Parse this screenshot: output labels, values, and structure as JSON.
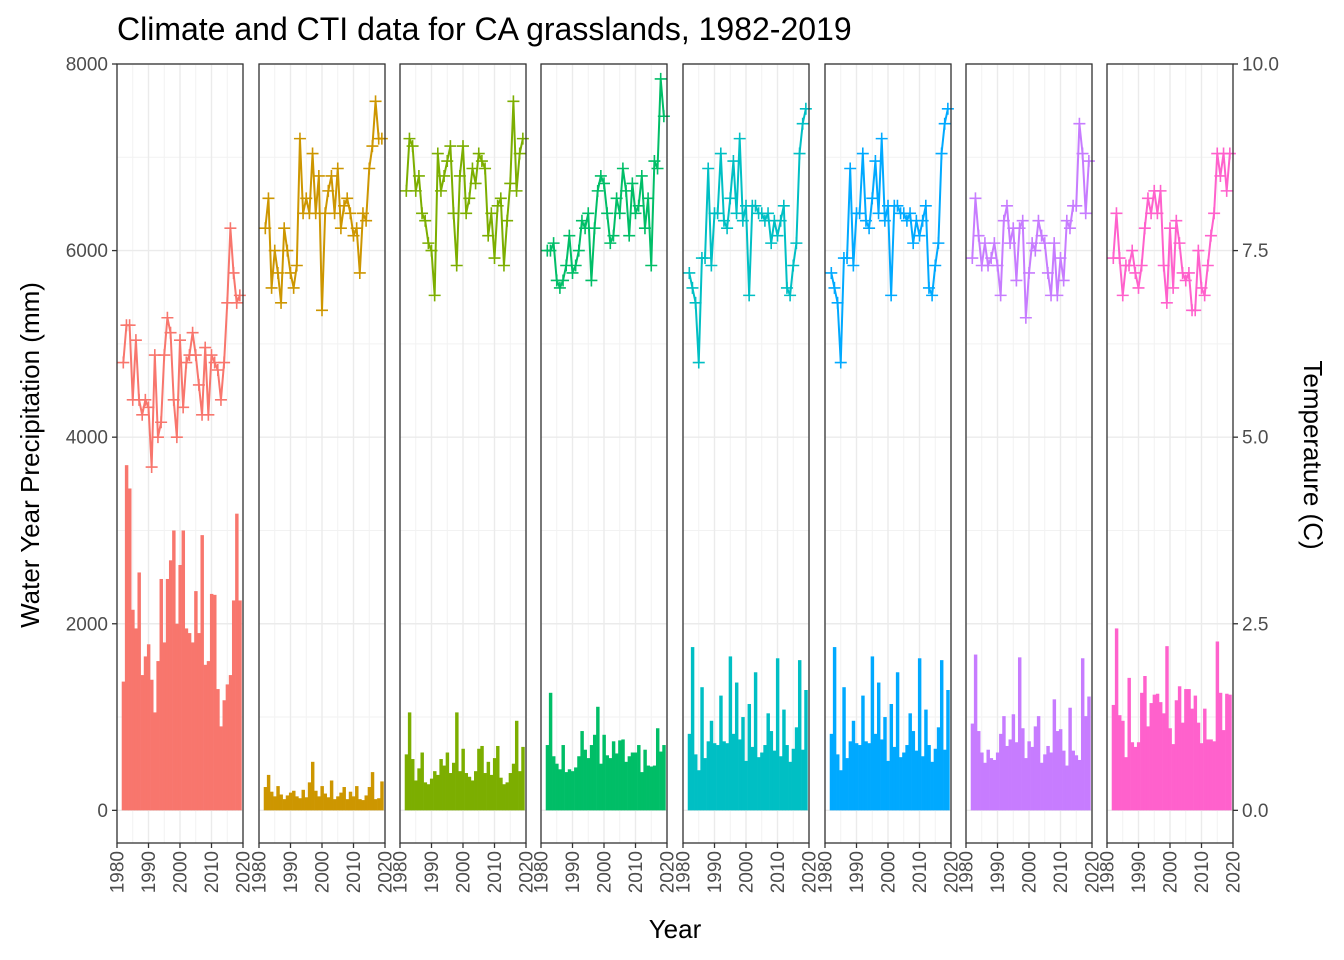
{
  "chart_data": {
    "type": "bar+line",
    "title": "Climate and CTI data for CA grasslands, 1982-2019",
    "xlabel": "Year",
    "ylabel": "Water Year Precipitation (mm)",
    "ylabel_right": "Temperature (C)",
    "xlim": [
      1980,
      2020
    ],
    "ylim": [
      -350,
      8000
    ],
    "ylim_right": [
      -0.4375,
      10.0
    ],
    "x_ticks": [
      "1980",
      "1990",
      "2000",
      "2010",
      "2020"
    ],
    "y_ticks": [
      "0",
      "2000",
      "4000",
      "6000",
      "8000"
    ],
    "y_ticks_right": [
      "0.0",
      "2.5",
      "5.0",
      "7.5",
      "10.0"
    ],
    "years": [
      1982,
      1983,
      1984,
      1985,
      1986,
      1987,
      1988,
      1989,
      1990,
      1991,
      1992,
      1993,
      1994,
      1995,
      1996,
      1997,
      1998,
      1999,
      2000,
      2001,
      2002,
      2003,
      2004,
      2005,
      2006,
      2007,
      2008,
      2009,
      2010,
      2011,
      2012,
      2013,
      2014,
      2015,
      2016,
      2017,
      2018,
      2019
    ],
    "series": [
      {
        "color": "#F8766D",
        "precip": [
          1380,
          3700,
          3450,
          2150,
          1950,
          2550,
          1450,
          1650,
          1780,
          1400,
          1050,
          1600,
          2480,
          1800,
          2480,
          2680,
          3000,
          2000,
          2630,
          3000,
          1950,
          1900,
          1800,
          2350,
          1900,
          2950,
          1560,
          1600,
          2320,
          2310,
          1300,
          900,
          1180,
          1350,
          1450,
          2250,
          3180,
          2250
        ],
        "temp": [
          6.0,
          6.5,
          6.5,
          5.5,
          6.3,
          5.5,
          5.3,
          5.5,
          5.4,
          4.6,
          6.1,
          5.0,
          5.2,
          6.1,
          6.6,
          6.4,
          5.5,
          5.0,
          6.3,
          5.4,
          6.0,
          6.1,
          6.4,
          6.1,
          5.7,
          5.3,
          6.2,
          5.3,
          6.1,
          6.0,
          5.9,
          5.5,
          6.0,
          6.8,
          7.8,
          7.2,
          6.8,
          6.9
        ]
      },
      {
        "color": "#CD9600",
        "precip": [
          250,
          380,
          200,
          150,
          260,
          170,
          120,
          160,
          190,
          210,
          150,
          130,
          220,
          140,
          300,
          520,
          210,
          150,
          260,
          180,
          140,
          320,
          120,
          150,
          190,
          250,
          120,
          200,
          150,
          260,
          120,
          110,
          160,
          250,
          410,
          120,
          130,
          310
        ],
        "temp": [
          7.8,
          8.2,
          7.0,
          7.5,
          7.2,
          6.8,
          7.8,
          7.5,
          7.2,
          7.0,
          7.3,
          9.0,
          8.0,
          8.2,
          8.0,
          8.8,
          8.0,
          8.5,
          6.7,
          8.0,
          8.3,
          8.5,
          8.0,
          8.6,
          7.8,
          8.1,
          8.2,
          8.0,
          7.7,
          7.8,
          7.2,
          8.0,
          7.9,
          8.6,
          8.9,
          9.5,
          9.0,
          9.0
        ]
      },
      {
        "color": "#7CAE00",
        "precip": [
          600,
          1050,
          550,
          320,
          450,
          620,
          300,
          280,
          340,
          420,
          380,
          550,
          480,
          620,
          400,
          510,
          1050,
          420,
          660,
          400,
          360,
          320,
          420,
          660,
          690,
          400,
          520,
          380,
          560,
          690,
          350,
          280,
          300,
          400,
          500,
          960,
          420,
          680
        ],
        "temp": [
          8.3,
          9.0,
          8.9,
          8.3,
          8.5,
          8.0,
          7.9,
          7.6,
          7.5,
          6.9,
          8.8,
          8.3,
          8.5,
          8.7,
          8.9,
          8.0,
          7.3,
          8.5,
          8.9,
          8.0,
          8.2,
          8.6,
          8.4,
          8.8,
          8.7,
          8.6,
          7.7,
          8.0,
          7.4,
          8.1,
          8.2,
          7.3,
          7.9,
          8.4,
          9.5,
          8.3,
          8.8,
          9.0
        ]
      },
      {
        "color": "#00BE67",
        "precip": [
          700,
          1260,
          580,
          500,
          440,
          700,
          410,
          440,
          420,
          460,
          580,
          850,
          650,
          560,
          700,
          810,
          1110,
          500,
          810,
          590,
          560,
          740,
          610,
          750,
          760,
          520,
          580,
          620,
          620,
          700,
          410,
          650,
          480,
          470,
          480,
          880,
          630,
          700
        ],
        "temp": [
          7.5,
          7.5,
          7.6,
          7.1,
          7.0,
          7.1,
          7.3,
          7.7,
          7.2,
          7.3,
          7.5,
          7.9,
          7.8,
          8.0,
          7.1,
          7.8,
          8.3,
          8.5,
          8.4,
          8.0,
          7.6,
          7.7,
          8.2,
          8.0,
          8.6,
          8.3,
          7.7,
          8.4,
          8.0,
          8.1,
          8.5,
          7.8,
          8.2,
          7.3,
          8.7,
          8.6,
          9.8,
          9.3
        ]
      },
      {
        "color": "#00BFC4",
        "precip": [
          820,
          1750,
          600,
          430,
          1320,
          560,
          740,
          960,
          720,
          700,
          1230,
          740,
          720,
          1650,
          820,
          1370,
          760,
          1000,
          530,
          1140,
          680,
          1480,
          570,
          620,
          700,
          1040,
          850,
          640,
          1630,
          580,
          1080,
          700,
          520,
          660,
          890,
          1610,
          650,
          1290
        ],
        "temp": [
          7.2,
          7.0,
          6.8,
          6.0,
          7.4,
          7.4,
          8.6,
          7.3,
          8.0,
          8.0,
          8.8,
          7.9,
          7.8,
          8.2,
          8.7,
          8.0,
          9.0,
          7.9,
          8.1,
          6.9,
          8.1,
          8.1,
          8.0,
          8.0,
          7.9,
          8.0,
          7.6,
          7.9,
          7.7,
          7.9,
          8.1,
          7.0,
          6.9,
          7.3,
          7.6,
          8.8,
          9.2,
          9.4
        ]
      },
      {
        "color": "#00A9FF",
        "precip": [
          820,
          1750,
          600,
          430,
          1320,
          560,
          740,
          960,
          720,
          700,
          1230,
          740,
          720,
          1650,
          820,
          1370,
          760,
          1000,
          530,
          1140,
          680,
          1480,
          570,
          620,
          700,
          1040,
          850,
          640,
          1630,
          580,
          1080,
          700,
          520,
          660,
          890,
          1610,
          650,
          1290
        ],
        "temp": [
          7.2,
          7.0,
          6.8,
          6.0,
          7.4,
          7.4,
          8.6,
          7.3,
          8.0,
          8.0,
          8.8,
          7.9,
          7.8,
          8.2,
          8.7,
          8.0,
          9.0,
          7.9,
          8.1,
          6.9,
          8.1,
          8.1,
          8.0,
          8.0,
          7.9,
          8.0,
          7.6,
          7.9,
          7.7,
          7.9,
          8.1,
          7.0,
          6.9,
          7.3,
          7.6,
          8.8,
          9.2,
          9.4
        ]
      },
      {
        "color": "#C77CFF",
        "precip": [
          930,
          1670,
          850,
          620,
          510,
          650,
          560,
          540,
          620,
          820,
          1010,
          690,
          760,
          1030,
          730,
          1640,
          880,
          560,
          740,
          680,
          900,
          1010,
          510,
          600,
          690,
          620,
          1190,
          850,
          870,
          640,
          480,
          1100,
          640,
          590,
          540,
          1630,
          1010,
          1220
        ],
        "temp": [
          7.4,
          8.2,
          7.7,
          7.3,
          7.6,
          7.3,
          7.4,
          7.6,
          7.3,
          6.9,
          7.9,
          8.1,
          7.6,
          7.8,
          7.1,
          7.8,
          7.9,
          6.6,
          7.2,
          7.6,
          7.5,
          7.9,
          7.7,
          7.6,
          7.2,
          6.9,
          7.6,
          6.9,
          7.4,
          7.1,
          7.9,
          7.8,
          8.1,
          8.1,
          9.2,
          8.8,
          8.0,
          8.7
        ]
      },
      {
        "color": "#FF61CC",
        "precip": [
          1130,
          1950,
          1020,
          960,
          570,
          1420,
          730,
          680,
          730,
          1260,
          1440,
          900,
          1150,
          1240,
          1250,
          1160,
          1040,
          1760,
          880,
          710,
          1180,
          1330,
          940,
          1300,
          1300,
          1090,
          1230,
          940,
          720,
          1090,
          760,
          760,
          740,
          1810,
          1260,
          860,
          1250,
          1240
        ],
        "temp": [
          7.4,
          8.0,
          7.4,
          6.9,
          7.3,
          7.3,
          7.5,
          7.2,
          7.0,
          7.3,
          7.8,
          8.2,
          8.0,
          8.3,
          8.0,
          8.3,
          7.3,
          6.8,
          7.8,
          7.0,
          7.9,
          7.6,
          7.2,
          7.1,
          7.2,
          6.7,
          6.7,
          7.5,
          7.0,
          6.9,
          7.3,
          7.7,
          8.0,
          8.8,
          8.5,
          8.8,
          8.3,
          8.8
        ]
      }
    ]
  }
}
